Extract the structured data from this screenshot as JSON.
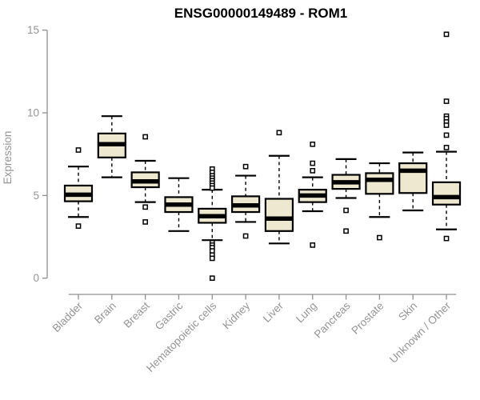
{
  "chart_data": {
    "type": "boxplot",
    "title": "ENSG00000149489 - ROM1",
    "ylabel": "Expression",
    "xlabel": "",
    "ylim": [
      0,
      15
    ],
    "yticks": [
      0,
      5,
      10,
      15
    ],
    "categories": [
      "Bladder",
      "Brain",
      "Breast",
      "Gastric",
      "Hematopoietic cells",
      "Kidney",
      "Liver",
      "Lung",
      "Pancreas",
      "Prostate",
      "Skin",
      "Unknown / Other"
    ],
    "series": [
      {
        "category": "Bladder",
        "whisker_low": 3.7,
        "q1": 4.65,
        "median": 5.05,
        "q3": 5.6,
        "whisker_high": 6.75,
        "outliers": [
          7.75,
          3.15
        ]
      },
      {
        "category": "Brain",
        "whisker_low": 6.1,
        "q1": 7.3,
        "median": 8.1,
        "q3": 8.75,
        "whisker_high": 9.8,
        "outliers": []
      },
      {
        "category": "Breast",
        "whisker_low": 4.6,
        "q1": 5.5,
        "median": 5.85,
        "q3": 6.4,
        "whisker_high": 7.1,
        "outliers": [
          8.55,
          4.3,
          3.4
        ]
      },
      {
        "category": "Gastric",
        "whisker_low": 2.85,
        "q1": 4.0,
        "median": 4.45,
        "q3": 4.9,
        "whisker_high": 6.05,
        "outliers": []
      },
      {
        "category": "Hematopoietic cells",
        "whisker_low": 2.3,
        "q1": 3.35,
        "median": 3.75,
        "q3": 4.2,
        "whisker_high": 5.35,
        "outliers": [
          6.6,
          6.4,
          6.2,
          6.05,
          5.9,
          5.75,
          5.6,
          5.45,
          2.15,
          2.0,
          1.85,
          1.65,
          1.4,
          1.2,
          0.0
        ]
      },
      {
        "category": "Kidney",
        "whisker_low": 3.4,
        "q1": 4.0,
        "median": 4.4,
        "q3": 4.95,
        "whisker_high": 6.2,
        "outliers": [
          6.75,
          2.55
        ]
      },
      {
        "category": "Liver",
        "whisker_low": 2.1,
        "q1": 2.85,
        "median": 3.6,
        "q3": 4.8,
        "whisker_high": 7.4,
        "outliers": [
          8.8
        ]
      },
      {
        "category": "Lung",
        "whisker_low": 4.05,
        "q1": 4.6,
        "median": 5.0,
        "q3": 5.35,
        "whisker_high": 6.1,
        "outliers": [
          8.1,
          6.95,
          6.5,
          2.0
        ]
      },
      {
        "category": "Pancreas",
        "whisker_low": 4.85,
        "q1": 5.4,
        "median": 5.8,
        "q3": 6.25,
        "whisker_high": 7.2,
        "outliers": [
          4.1,
          2.85
        ]
      },
      {
        "category": "Prostate",
        "whisker_low": 3.7,
        "q1": 5.1,
        "median": 5.95,
        "q3": 6.35,
        "whisker_high": 6.95,
        "outliers": [
          2.45
        ]
      },
      {
        "category": "Skin",
        "whisker_low": 4.1,
        "q1": 5.15,
        "median": 6.5,
        "q3": 6.95,
        "whisker_high": 7.6,
        "outliers": []
      },
      {
        "category": "Unknown / Other",
        "whisker_low": 2.95,
        "q1": 4.45,
        "median": 4.9,
        "q3": 5.8,
        "whisker_high": 7.65,
        "outliers": [
          14.75,
          10.7,
          9.8,
          9.65,
          9.45,
          9.25,
          8.65,
          7.9,
          2.4
        ]
      }
    ],
    "colors": {
      "box_fill": "#EEE8D0",
      "box_stroke": "#000000",
      "median": "#000000",
      "outlier_stroke": "#000000",
      "axis": "#8f8f8f",
      "label": "#949494",
      "title": "#000000",
      "background": "#ffffff"
    },
    "layout": {
      "grid": false,
      "legend": "none",
      "x_label_rotation": 45,
      "whisker_style": "dashed",
      "outlier_marker": "open-square"
    }
  }
}
